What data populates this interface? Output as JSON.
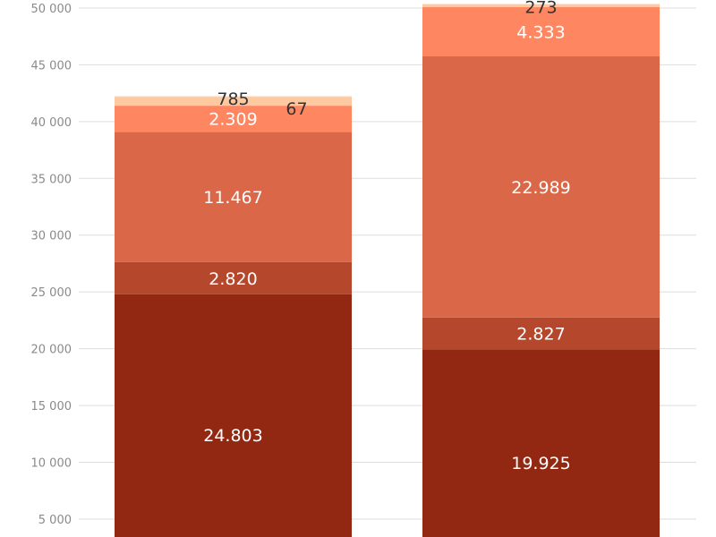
{
  "chart_data": {
    "type": "bar",
    "stacked": true,
    "title": "",
    "xlabel": "",
    "ylabel": "",
    "ylim": [
      0,
      50700
    ],
    "grid": true,
    "yticks": [
      5000,
      10000,
      15000,
      20000,
      25000,
      30000,
      35000,
      40000,
      45000,
      50000
    ],
    "ytick_labels": [
      "5 000",
      "10 000",
      "15 000",
      "20 000",
      "25 000",
      "30 000",
      "35 000",
      "40 000",
      "45 000",
      "50 000"
    ],
    "categories": [
      "",
      ""
    ],
    "series": [
      {
        "name": "s1",
        "color": "#922712",
        "values": [
          24803,
          19925
        ],
        "labels": [
          "24.803",
          "19.925"
        ],
        "label_color": "#ffffff"
      },
      {
        "name": "s2",
        "color": "#b5472c",
        "values": [
          2820,
          2827
        ],
        "labels": [
          "2.820",
          "2.827"
        ],
        "label_color": "#ffffff"
      },
      {
        "name": "s3",
        "color": "#da6848",
        "values": [
          11467,
          22989
        ],
        "labels": [
          "11.467",
          "22.989"
        ],
        "label_color": "#ffffff"
      },
      {
        "name": "s4",
        "color": "#fe8762",
        "values": [
          2309,
          4333
        ],
        "labels": [
          "2.309",
          "4.333"
        ],
        "label_color": "#ffffff"
      },
      {
        "name": "s5",
        "color": "#fdc9a0",
        "values": [
          785,
          273
        ],
        "labels": [
          "785",
          "273"
        ],
        "label_color": "#333333"
      },
      {
        "name": "s6",
        "color": "#fde0c5",
        "values": [
          67,
          0
        ],
        "labels": [
          "67",
          ""
        ],
        "label_color": "#333333"
      }
    ]
  }
}
